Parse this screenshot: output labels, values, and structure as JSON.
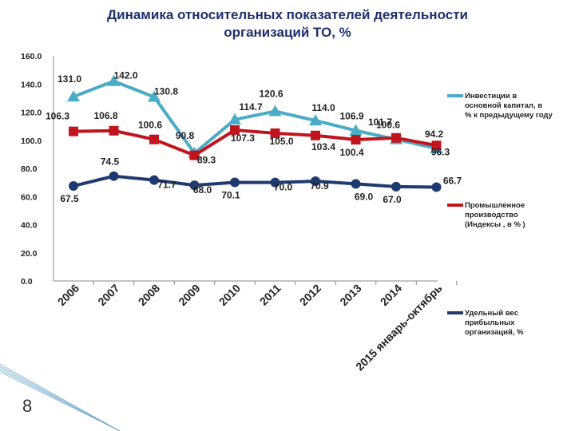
{
  "header": {
    "title_line1": "Динамика относительных показателей деятельности",
    "title_line2": "организаций   ТО, %"
  },
  "slide_number": "8",
  "chart_data": {
    "type": "line",
    "title": "Динамика относительных показателей деятельности организаций ТО, %",
    "categories": [
      "2006",
      "2007",
      "2008",
      "2009",
      "2010",
      "2011",
      "2012",
      "2013",
      "2014",
      "2015 январь-октябрь"
    ],
    "ylim": [
      0,
      160
    ],
    "yticks": [
      "0.0",
      "20.0",
      "40.0",
      "60.0",
      "80.0",
      "100.0",
      "120.0",
      "140.0",
      "160.0"
    ],
    "grid": false,
    "series": [
      {
        "name": "Инвестиции в основной капитал, в % к предыдущему году",
        "color": "#4bacc6",
        "marker": "triangle",
        "values": [
          131.0,
          142.0,
          130.8,
          90.8,
          114.7,
          120.6,
          114.0,
          106.9,
          100.6,
          94.2
        ],
        "labels": [
          "131.0",
          "142.0",
          "130.8",
          "90.8",
          "114.7",
          "120.6",
          "114.0",
          "106.9",
          "100.6",
          "94.2"
        ]
      },
      {
        "name": "Промышленное производство (Индексы , в % )",
        "color": "#c0141e",
        "marker": "square",
        "values": [
          106.3,
          106.8,
          100.6,
          89.3,
          107.3,
          105.0,
          103.4,
          100.4,
          101.7,
          96.3
        ],
        "labels": [
          "106.3",
          "106.8",
          "100.6",
          "89.3",
          "107.3",
          "105.0",
          "103.4",
          "100.4",
          "101.7",
          "96.3"
        ]
      },
      {
        "name": "Удельный вес прибыльных организаций, %",
        "color": "#1f3a6e",
        "marker": "circle",
        "values": [
          67.5,
          74.5,
          71.7,
          68.0,
          70.1,
          70.0,
          70.9,
          69.0,
          67.0,
          66.7
        ],
        "labels": [
          "67.5",
          "74.5",
          "71.7",
          "68.0",
          "70.1",
          "70.0",
          "70.9",
          "69.0",
          "67.0",
          "66.7"
        ]
      }
    ]
  }
}
